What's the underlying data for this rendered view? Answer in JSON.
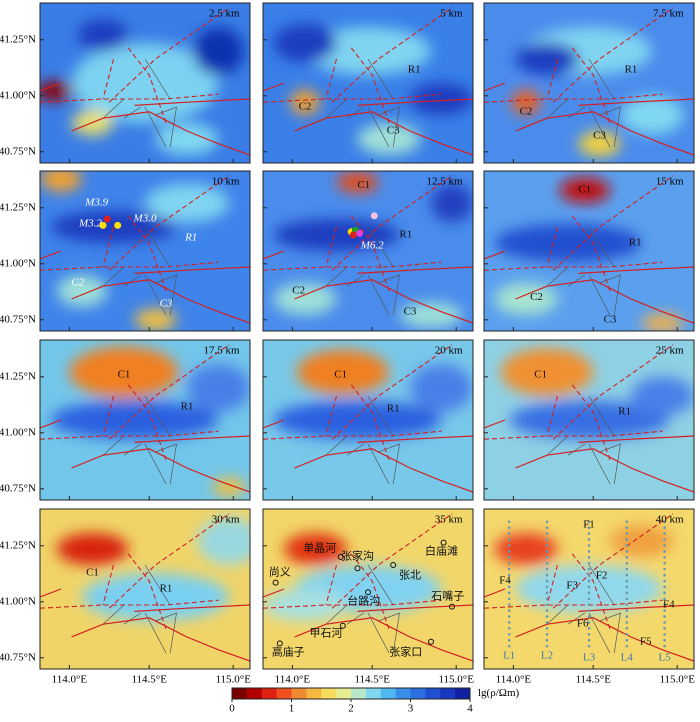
{
  "y_axis_labels": [
    "41.25°N",
    "41.00°N",
    "40.75°N"
  ],
  "x_axis_labels": [
    "114.0°E",
    "114.5°E",
    "115.0°E"
  ],
  "panels": [
    {
      "depth": "2.5 km",
      "labels": []
    },
    {
      "depth": "5 km",
      "labels": [
        "R1",
        "C2",
        "C3"
      ]
    },
    {
      "depth": "7.5 km",
      "labels": [
        "R1",
        "C2",
        "C3"
      ]
    },
    {
      "depth": "10 km",
      "labels": [
        "M3.9",
        "M3.2",
        "M3.0",
        "R1",
        "C2",
        "C3"
      ]
    },
    {
      "depth": "12.5 km",
      "labels": [
        "C1",
        "R1",
        "M6.2",
        "C2",
        "C3"
      ]
    },
    {
      "depth": "15 km",
      "labels": [
        "C1",
        "R1",
        "C2",
        "C3"
      ]
    },
    {
      "depth": "17.5 km",
      "labels": [
        "C1",
        "R1"
      ]
    },
    {
      "depth": "20 km",
      "labels": [
        "C1",
        "R1"
      ]
    },
    {
      "depth": "25 km",
      "labels": [
        "C1",
        "R1"
      ]
    },
    {
      "depth": "30 km",
      "labels": [
        "C1",
        "R1"
      ]
    },
    {
      "depth": "35 km",
      "labels": [
        "单晶河",
        "张家沟",
        "白庙滩",
        "尚义",
        "张北",
        "台路沟",
        "石嘴子",
        "甲石河",
        "高庙子",
        "张家口"
      ]
    },
    {
      "depth": "40 km",
      "labels": [
        "F1",
        "F4",
        "F3",
        "F2",
        "F4",
        "F6",
        "F5",
        "L1",
        "L2",
        "L3",
        "L4",
        "L5"
      ]
    }
  ],
  "colorbar": {
    "ticks": [
      0,
      1,
      2,
      3,
      4
    ],
    "label": "lg(ρ/Ωm)"
  }
}
